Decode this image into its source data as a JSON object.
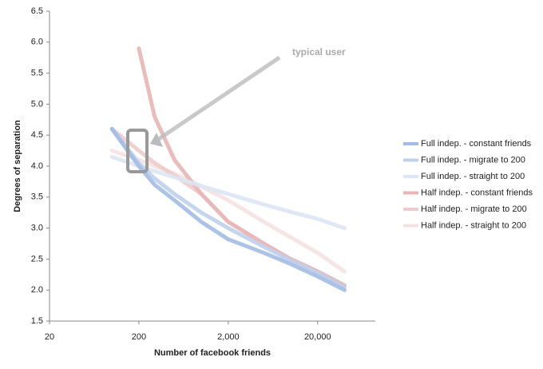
{
  "chart_data": {
    "type": "line",
    "x_scale": "log",
    "x_label": "Number of facebook friends",
    "y_label": "Degrees of separation",
    "annotation": "typical user",
    "xlim": [
      20,
      100000
    ],
    "xticks": [
      20,
      200,
      {
        "value": 2000,
        "label": "2,000"
      },
      {
        "value": 20000,
        "label": "20,000"
      }
    ],
    "ylim": [
      1.5,
      6.5
    ],
    "yticks": [
      {
        "value": 1.5,
        "label": "1.5"
      },
      {
        "value": 2,
        "label": "2.0"
      },
      {
        "value": 2.5,
        "label": "2.5"
      },
      {
        "value": 3,
        "label": "3.0"
      },
      {
        "value": 3.5,
        "label": "3.5"
      },
      {
        "value": 4,
        "label": "4.0"
      },
      {
        "value": 4.5,
        "label": "4.5"
      },
      {
        "value": 5,
        "label": "5.0"
      },
      {
        "value": 5.5,
        "label": "5.5"
      },
      {
        "value": 6,
        "label": "6.0"
      },
      {
        "value": 6.5,
        "label": "6.5"
      }
    ],
    "x": [
      100,
      200,
      300,
      500,
      1000,
      2000,
      5000,
      10000,
      20000,
      40000
    ],
    "series": [
      {
        "name": "Full indep. - constant friends",
        "color": "#a3bce3",
        "values": [
          4.6,
          4.0,
          3.7,
          3.45,
          3.1,
          2.82,
          2.6,
          2.42,
          2.22,
          2.0
        ]
      },
      {
        "name": "Full indep. - migrate to 200",
        "color": "#c0d0ec",
        "values": [
          4.6,
          4.05,
          3.8,
          3.55,
          3.25,
          3.0,
          2.7,
          2.48,
          2.28,
          2.05
        ]
      },
      {
        "name": "Full indep. - straight to 200",
        "color": "#dde6f4",
        "values": [
          4.15,
          4.0,
          3.92,
          3.82,
          3.68,
          3.55,
          3.38,
          3.26,
          3.15,
          3.0
        ]
      },
      {
        "name": "Half indep. - constant friends",
        "color": "#e8b6b6",
        "values": [
          null,
          5.9,
          4.8,
          4.1,
          3.55,
          3.1,
          2.75,
          2.5,
          2.3,
          2.07
        ]
      },
      {
        "name": "Half indep. - migrate to 200",
        "color": "#eecbcb",
        "values": [
          4.6,
          4.25,
          4.05,
          3.85,
          3.55,
          3.1,
          2.75,
          2.5,
          2.3,
          2.08
        ]
      },
      {
        "name": "Half indep. - straight to 200",
        "color": "#f4e2e2",
        "values": [
          4.25,
          4.1,
          4.0,
          3.88,
          3.67,
          3.45,
          3.1,
          2.85,
          2.6,
          2.3
        ]
      }
    ]
  }
}
